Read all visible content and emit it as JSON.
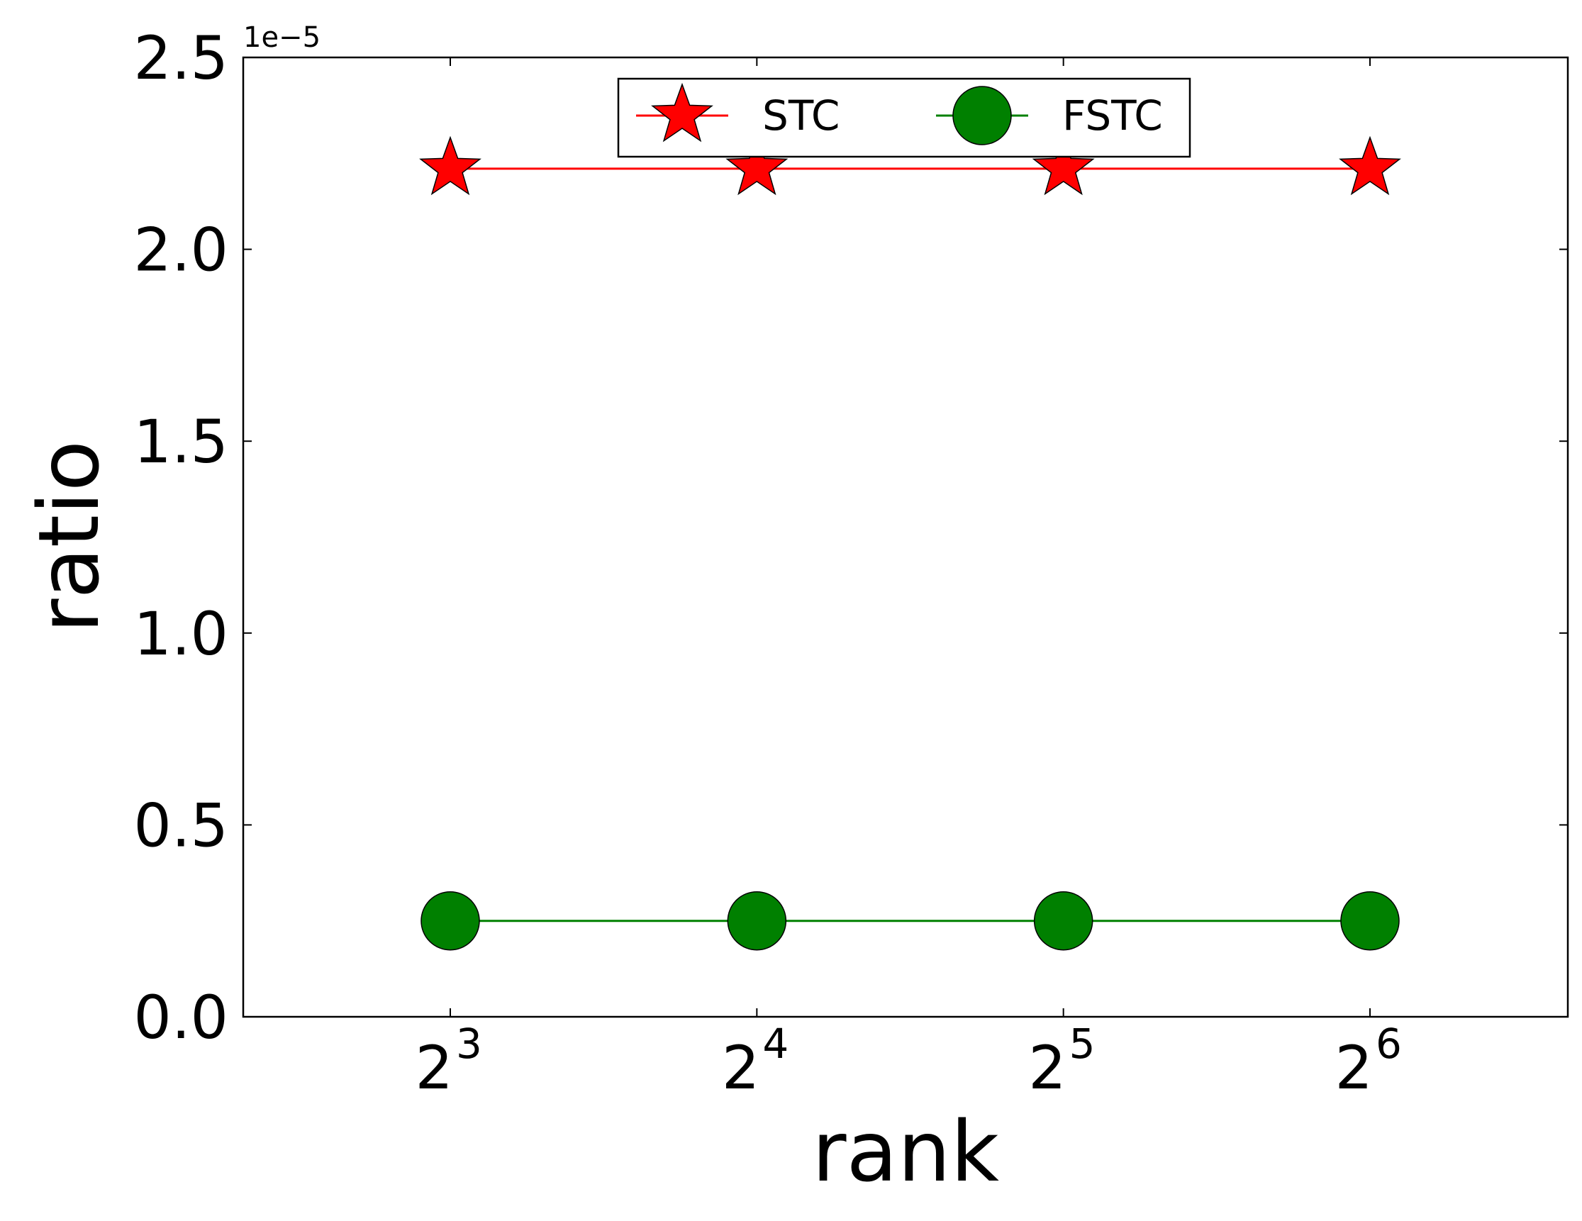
{
  "chart_data": {
    "type": "line",
    "xlabel": "rank",
    "ylabel": "ratio",
    "x_scale": "log2",
    "x": [
      8,
      16,
      32,
      64
    ],
    "x_tick_labels": [
      {
        "base": "2",
        "exp": "3"
      },
      {
        "base": "2",
        "exp": "4"
      },
      {
        "base": "2",
        "exp": "5"
      },
      {
        "base": "2",
        "exp": "6"
      }
    ],
    "y_tick_labels": [
      "0.0",
      "0.5",
      "1.0",
      "1.5",
      "2.0",
      "2.5"
    ],
    "y_ticks": [
      0.0,
      0.5,
      1.0,
      1.5,
      2.0,
      2.5
    ],
    "ylim": [
      0,
      2.5
    ],
    "y_multiplier_label": "1e−5",
    "grid": false,
    "legend": {
      "placement": "upper-center",
      "columns": 2
    },
    "series": [
      {
        "name": "STC",
        "values": [
          2.21,
          2.21,
          2.21,
          2.21
        ],
        "color": "#ff0000",
        "marker": "star"
      },
      {
        "name": "FSTC",
        "values": [
          0.25,
          0.25,
          0.25,
          0.25
        ],
        "color": "#008000",
        "marker": "circle"
      }
    ]
  }
}
